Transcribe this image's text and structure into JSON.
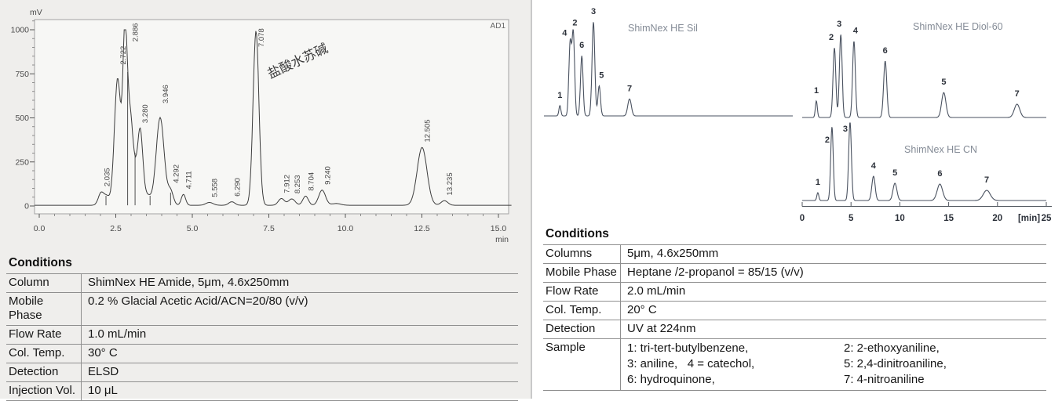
{
  "left_panel": {
    "conditions": {
      "title": "Conditions",
      "rows": [
        [
          "Column",
          "ShimNex HE Amide, 5μm, 4.6x250mm"
        ],
        [
          "Mobile Phase",
          "0.2 % Glacial Acetic Acid/ACN=20/80 (v/v)"
        ],
        [
          "Flow Rate",
          "1.0 mL/min"
        ],
        [
          "Col. Temp.",
          "30° C"
        ],
        [
          "Detection",
          "ELSD"
        ],
        [
          "Injection Vol.",
          "10 μL"
        ]
      ]
    }
  },
  "right_panel": {
    "conditions": {
      "title": "Conditions",
      "rows": [
        [
          "Columns",
          "5μm, 4.6x250mm"
        ],
        [
          "Mobile Phase",
          "Heptane /2-propanol = 85/15 (v/v)"
        ],
        [
          "Flow Rate",
          "2.0 mL/min"
        ],
        [
          "Col. Temp.",
          "20° C"
        ],
        [
          "Detection",
          "UV at 224nm"
        ],
        [
          "Sample",
          {
            "pairs": [
              [
                "1: tri-tert-butylbenzene,",
                "2: 2-ethoxyaniline,"
              ],
              [
                "3: aniline,   4 = catechol,",
                "5: 2,4-dinitroaniline,"
              ],
              [
                "6: hydroquinone,",
                "7: 4-nitroaniline"
              ]
            ]
          }
        ]
      ]
    }
  },
  "chart_data": [
    {
      "id": "main-chromatogram",
      "type": "line",
      "detector": "AD1",
      "ylabel": "mV",
      "xlabel": "min",
      "ylim": [
        0,
        1000
      ],
      "yticks": [
        0,
        250,
        500,
        750,
        1000
      ],
      "xticks": [
        0,
        2.5,
        5,
        7.5,
        10,
        12.5,
        15
      ],
      "xlim": [
        0,
        15.5
      ],
      "annotation": {
        "text": "盐酸水苏碱",
        "t": 8.5,
        "mv": 800,
        "angle": -25
      },
      "peak_labels": [
        {
          "t": 2.035,
          "label": "2.035"
        },
        {
          "t": 2.722,
          "label": "2.722",
          "dx": 4,
          "lv": 780
        },
        {
          "t": 2.886,
          "label": "2.886",
          "dx": 13,
          "lv": 910
        },
        {
          "t": 3.28,
          "label": "3.280"
        },
        {
          "t": 3.946,
          "label": "3.946",
          "lv": 560
        },
        {
          "t": 4.292,
          "label": "4.292"
        },
        {
          "t": 4.711,
          "label": "4.711"
        },
        {
          "t": 5.558,
          "label": "5.558"
        },
        {
          "t": 6.29,
          "label": "6.290"
        },
        {
          "t": 7.078,
          "label": "7.078",
          "lv": 880
        },
        {
          "t": 7.912,
          "label": "7.912"
        },
        {
          "t": 8.253,
          "label": "8.253"
        },
        {
          "t": 8.704,
          "label": "8.704"
        },
        {
          "t": 9.24,
          "label": "9.240"
        },
        {
          "t": 12.505,
          "label": "12.505"
        },
        {
          "t": 13.235,
          "label": "13.235"
        }
      ],
      "components": [
        [
          2.02,
          70,
          0.09
        ],
        [
          2.21,
          48,
          0.09
        ],
        [
          2.56,
          720,
          0.105
        ],
        [
          2.8,
          900,
          0.07
        ],
        [
          2.95,
          430,
          0.09
        ],
        [
          3.09,
          180,
          0.11
        ],
        [
          3.3,
          400,
          0.085
        ],
        [
          3.53,
          55,
          0.12
        ],
        [
          3.95,
          498,
          0.13
        ],
        [
          4.29,
          80,
          0.09
        ],
        [
          4.71,
          62,
          0.07
        ],
        [
          5.56,
          16,
          0.12
        ],
        [
          6.29,
          20,
          0.1
        ],
        [
          7.08,
          990,
          0.095
        ],
        [
          7.91,
          38,
          0.1
        ],
        [
          8.25,
          36,
          0.11
        ],
        [
          8.7,
          52,
          0.09
        ],
        [
          9.24,
          86,
          0.11
        ],
        [
          9.7,
          10,
          0.15
        ],
        [
          12.505,
          328,
          0.16
        ],
        [
          13.235,
          26,
          0.11
        ]
      ],
      "drop_lines": [
        [
          2.18,
          58
        ],
        [
          2.888,
          760
        ],
        [
          3.13,
          300
        ],
        [
          3.62,
          58
        ],
        [
          4.29,
          76
        ]
      ]
    },
    {
      "id": "sil",
      "type": "line",
      "title": "ShimNex HE Sil",
      "peaks": [
        {
          "n": 1,
          "t": 1.6,
          "h": 0.11,
          "w": 0.1
        },
        {
          "n": 4,
          "t": 2.63,
          "h": 0.77,
          "w": 0.13,
          "ldx": -7
        },
        {
          "n": 2,
          "t": 2.95,
          "h": 0.88,
          "w": 0.13,
          "ldx": 2
        },
        {
          "n": 6,
          "t": 3.8,
          "h": 0.64,
          "w": 0.13
        },
        {
          "n": 3,
          "t": 4.97,
          "h": 1.0,
          "w": 0.14
        },
        {
          "n": 5,
          "t": 5.55,
          "h": 0.32,
          "w": 0.13,
          "ldx": 3
        },
        {
          "n": 7,
          "t": 8.6,
          "h": 0.18,
          "w": 0.18
        }
      ]
    },
    {
      "id": "diol-60",
      "type": "line",
      "title": "ShimNex HE Diol-60",
      "peaks": [
        {
          "n": 1,
          "t": 1.45,
          "h": 0.2,
          "w": 0.1
        },
        {
          "n": 2,
          "t": 3.3,
          "h": 0.84,
          "w": 0.14,
          "ldx": -4
        },
        {
          "n": 3,
          "t": 3.95,
          "h": 1.0,
          "w": 0.14,
          "ldx": -2
        },
        {
          "n": 4,
          "t": 5.3,
          "h": 0.92,
          "w": 0.14,
          "ldx": 2
        },
        {
          "n": 6,
          "t": 8.5,
          "h": 0.68,
          "w": 0.16
        },
        {
          "n": 5,
          "t": 14.5,
          "h": 0.3,
          "w": 0.22
        },
        {
          "n": 7,
          "t": 22.0,
          "h": 0.16,
          "w": 0.28
        }
      ]
    },
    {
      "id": "cn",
      "type": "line",
      "title": "ShimNex HE CN",
      "xticks": [
        0,
        5,
        10,
        15,
        20,
        25
      ],
      "xlabel": "[min]",
      "xlim": [
        0,
        25
      ],
      "peaks": [
        {
          "n": 1,
          "t": 1.6,
          "h": 0.1,
          "w": 0.1
        },
        {
          "n": 2,
          "t": 3.05,
          "h": 0.94,
          "w": 0.13,
          "ldx": -6,
          "ldy": 30
        },
        {
          "n": 3,
          "t": 4.9,
          "h": 1.0,
          "w": 0.14,
          "ldx": -6,
          "ldy": 22
        },
        {
          "n": 4,
          "t": 7.3,
          "h": 0.31,
          "w": 0.17
        },
        {
          "n": 5,
          "t": 9.5,
          "h": 0.22,
          "w": 0.2
        },
        {
          "n": 6,
          "t": 14.1,
          "h": 0.21,
          "w": 0.28
        },
        {
          "n": 7,
          "t": 18.9,
          "h": 0.13,
          "w": 0.36
        }
      ]
    }
  ]
}
